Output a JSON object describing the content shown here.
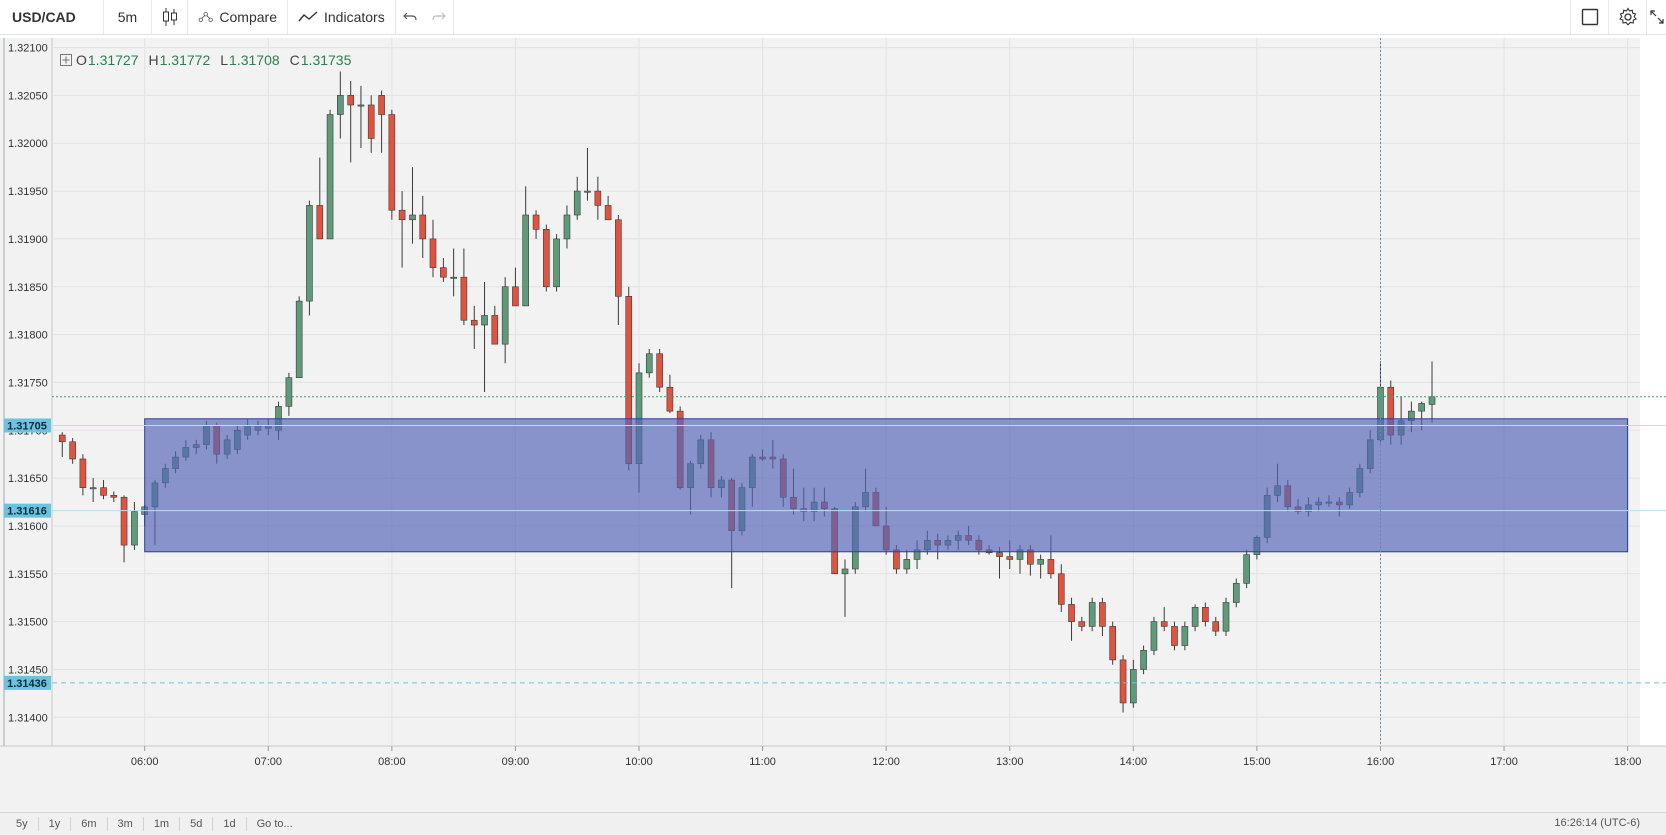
{
  "toolbar": {
    "symbol": "USD/CAD",
    "interval": "5m",
    "compare_label": "Compare",
    "indicators_label": "Indicators"
  },
  "legend": {
    "o_label": "O",
    "o_value": "1.31727",
    "h_label": "H",
    "h_value": "1.31772",
    "l_label": "L",
    "l_value": "1.31708",
    "c_label": "C",
    "c_value": "1.31735"
  },
  "bottom_bar": {
    "ranges": [
      "5y",
      "1y",
      "6m",
      "3m",
      "1m",
      "5d",
      "1d"
    ],
    "goto_label": "Go to...",
    "clock": "16:26:14 (UTC-6)"
  },
  "colors": {
    "up": "#5f9b7b",
    "down": "#e0533f",
    "zone_up": "#3d6f8e",
    "zone_down": "#8a4f7a",
    "zone_fill": "#5566b8",
    "price_tag": "#6cc3e0"
  },
  "chart_data": {
    "type": "candlestick",
    "symbol": "USD/CAD",
    "interval": "5m",
    "y_ticks": [
      "1.32100",
      "1.32050",
      "1.32000",
      "1.31950",
      "1.31900",
      "1.31850",
      "1.31800",
      "1.31750",
      "1.31700",
      "1.31650",
      "1.31600",
      "1.31550",
      "1.31500",
      "1.31450",
      "1.31400"
    ],
    "ylim": [
      1.3137,
      1.3211
    ],
    "x_ticks": [
      "06:00",
      "07:00",
      "08:00",
      "09:00",
      "10:00",
      "11:00",
      "12:00",
      "13:00",
      "14:00",
      "15:00",
      "16:00",
      "17:00",
      "18:00"
    ],
    "x_start_hour": 5.25,
    "x_end_hour": 18.1,
    "price_tags": [
      {
        "label": "1.31705",
        "value": 1.31705
      },
      {
        "label": "1.31616",
        "value": 1.31616
      },
      {
        "label": "1.31436",
        "value": 1.31436
      }
    ],
    "current_price_line": 1.31735,
    "crosshair_time": "16:00",
    "zone": {
      "start": "06:00",
      "end": "18:00",
      "top": 1.31712,
      "bottom": 1.31573
    },
    "candles": [
      [
        5.333,
        1.31695,
        1.31698,
        1.31672,
        1.31688
      ],
      [
        5.417,
        1.31688,
        1.31692,
        1.31665,
        1.3167
      ],
      [
        5.5,
        1.3167,
        1.31675,
        1.31632,
        1.3164
      ],
      [
        5.583,
        1.3164,
        1.3165,
        1.31625,
        1.3164
      ],
      [
        5.667,
        1.3164,
        1.31648,
        1.31628,
        1.31632
      ],
      [
        5.75,
        1.31632,
        1.31636,
        1.31625,
        1.3163
      ],
      [
        5.833,
        1.3163,
        1.31632,
        1.31562,
        1.3158
      ],
      [
        5.917,
        1.3158,
        1.31625,
        1.31575,
        1.31615
      ],
      [
        6.0,
        1.31612,
        1.31622,
        1.316,
        1.3162
      ],
      [
        6.083,
        1.3162,
        1.31648,
        1.3158,
        1.31645
      ],
      [
        6.167,
        1.31645,
        1.31665,
        1.3164,
        1.3166
      ],
      [
        6.25,
        1.3166,
        1.31678,
        1.31655,
        1.31672
      ],
      [
        6.333,
        1.31672,
        1.3169,
        1.31668,
        1.31682
      ],
      [
        6.417,
        1.31682,
        1.3169,
        1.31675,
        1.31685
      ],
      [
        6.5,
        1.31685,
        1.3171,
        1.3168,
        1.31705
      ],
      [
        6.583,
        1.31705,
        1.31708,
        1.31665,
        1.31675
      ],
      [
        6.667,
        1.31675,
        1.31695,
        1.3167,
        1.3169
      ],
      [
        6.75,
        1.3168,
        1.31705,
        1.31675,
        1.317
      ],
      [
        6.833,
        1.31695,
        1.31712,
        1.3169,
        1.31705
      ],
      [
        6.917,
        1.317,
        1.3171,
        1.31695,
        1.31705
      ],
      [
        7.0,
        1.31702,
        1.31712,
        1.31695,
        1.31705
      ],
      [
        7.083,
        1.317,
        1.3173,
        1.3169,
        1.31725
      ],
      [
        7.167,
        1.31725,
        1.3176,
        1.31715,
        1.31755
      ],
      [
        7.25,
        1.31755,
        1.3184,
        1.31755,
        1.31835
      ],
      [
        7.333,
        1.31835,
        1.3194,
        1.3182,
        1.31935
      ],
      [
        7.417,
        1.31935,
        1.31985,
        1.319,
        1.319
      ],
      [
        7.5,
        1.319,
        1.32035,
        1.319,
        1.3203
      ],
      [
        7.583,
        1.3203,
        1.32075,
        1.32005,
        1.3205
      ],
      [
        7.667,
        1.3205,
        1.32065,
        1.3198,
        1.3204
      ],
      [
        7.75,
        1.3204,
        1.3206,
        1.31995,
        1.3204
      ],
      [
        7.833,
        1.3204,
        1.3205,
        1.3199,
        1.32005
      ],
      [
        7.917,
        1.3205,
        1.32055,
        1.3199,
        1.3203
      ],
      [
        8.0,
        1.3203,
        1.32035,
        1.3192,
        1.3193
      ],
      [
        8.083,
        1.3193,
        1.3195,
        1.3187,
        1.3192
      ],
      [
        8.167,
        1.3192,
        1.31975,
        1.31895,
        1.31925
      ],
      [
        8.25,
        1.31925,
        1.31945,
        1.3188,
        1.319
      ],
      [
        8.333,
        1.319,
        1.3192,
        1.3186,
        1.3187
      ],
      [
        8.417,
        1.3187,
        1.3188,
        1.31855,
        1.3186
      ],
      [
        8.5,
        1.3186,
        1.3189,
        1.3184,
        1.3186
      ],
      [
        8.583,
        1.3186,
        1.3189,
        1.3181,
        1.31815
      ],
      [
        8.667,
        1.31815,
        1.3183,
        1.31785,
        1.3181
      ],
      [
        8.75,
        1.3181,
        1.31855,
        1.3174,
        1.3182
      ],
      [
        8.833,
        1.3182,
        1.3183,
        1.3179,
        1.3179
      ],
      [
        8.917,
        1.3179,
        1.3186,
        1.3177,
        1.3185
      ],
      [
        9.0,
        1.3185,
        1.3187,
        1.3183,
        1.3183
      ],
      [
        9.083,
        1.3183,
        1.31955,
        1.3183,
        1.31925
      ],
      [
        9.167,
        1.31925,
        1.3193,
        1.319,
        1.3191
      ],
      [
        9.25,
        1.3191,
        1.31915,
        1.31845,
        1.3185
      ],
      [
        9.333,
        1.3185,
        1.31905,
        1.31845,
        1.319
      ],
      [
        9.417,
        1.319,
        1.31935,
        1.3189,
        1.31925
      ],
      [
        9.5,
        1.31925,
        1.31965,
        1.3192,
        1.3195
      ],
      [
        9.583,
        1.3195,
        1.31995,
        1.3194,
        1.3195
      ],
      [
        9.667,
        1.3195,
        1.31965,
        1.3192,
        1.31935
      ],
      [
        9.75,
        1.31935,
        1.31945,
        1.3192,
        1.3192
      ],
      [
        9.833,
        1.3192,
        1.31925,
        1.3181,
        1.3184
      ],
      [
        9.917,
        1.3184,
        1.3185,
        1.31658,
        1.31665
      ],
      [
        10.0,
        1.31665,
        1.3177,
        1.31635,
        1.3176
      ],
      [
        10.083,
        1.3176,
        1.31785,
        1.31755,
        1.3178
      ],
      [
        10.167,
        1.3178,
        1.31785,
        1.3174,
        1.31745
      ],
      [
        10.25,
        1.31745,
        1.31758,
        1.31718,
        1.3172
      ],
      [
        10.333,
        1.3172,
        1.31725,
        1.31638,
        1.3164
      ],
      [
        10.417,
        1.3164,
        1.31668,
        1.31612,
        1.31665
      ],
      [
        10.5,
        1.31665,
        1.31695,
        1.3166,
        1.3169
      ],
      [
        10.583,
        1.3169,
        1.31698,
        1.3163,
        1.3164
      ],
      [
        10.667,
        1.3164,
        1.31652,
        1.3163,
        1.31648
      ],
      [
        10.75,
        1.31648,
        1.3165,
        1.31535,
        1.31595
      ],
      [
        10.833,
        1.31595,
        1.31645,
        1.3159,
        1.3164
      ],
      [
        10.917,
        1.3164,
        1.31675,
        1.3162,
        1.31672
      ],
      [
        11.0,
        1.31672,
        1.3168,
        1.31668,
        1.3167
      ],
      [
        11.083,
        1.31672,
        1.3169,
        1.3166,
        1.3167
      ],
      [
        11.167,
        1.3167,
        1.31675,
        1.3162,
        1.3163
      ],
      [
        11.25,
        1.3163,
        1.3166,
        1.31612,
        1.31618
      ],
      [
        11.333,
        1.31618,
        1.3164,
        1.31605,
        1.31615
      ],
      [
        11.417,
        1.31615,
        1.3164,
        1.31605,
        1.31625
      ],
      [
        11.5,
        1.31625,
        1.3164,
        1.3161,
        1.31618
      ],
      [
        11.583,
        1.31618,
        1.3162,
        1.3155,
        1.3155
      ],
      [
        11.667,
        1.3155,
        1.31565,
        1.31505,
        1.31555
      ],
      [
        11.75,
        1.31555,
        1.31625,
        1.3155,
        1.3162
      ],
      [
        11.833,
        1.3162,
        1.3166,
        1.31615,
        1.31635
      ],
      [
        11.917,
        1.31635,
        1.3164,
        1.316,
        1.316
      ],
      [
        12.0,
        1.316,
        1.3162,
        1.3157,
        1.31575
      ],
      [
        12.083,
        1.31575,
        1.3158,
        1.3155,
        1.31555
      ],
      [
        12.167,
        1.31555,
        1.31575,
        1.3155,
        1.31565
      ],
      [
        12.25,
        1.31565,
        1.31585,
        1.31555,
        1.31575
      ],
      [
        12.333,
        1.31575,
        1.31595,
        1.3157,
        1.31585
      ],
      [
        12.417,
        1.31585,
        1.31592,
        1.31565,
        1.3158
      ],
      [
        12.5,
        1.3158,
        1.3159,
        1.31575,
        1.31585
      ],
      [
        12.583,
        1.31585,
        1.31595,
        1.31575,
        1.3159
      ],
      [
        12.667,
        1.3159,
        1.316,
        1.3158,
        1.31585
      ],
      [
        12.75,
        1.31585,
        1.3159,
        1.3157,
        1.31575
      ],
      [
        12.833,
        1.31575,
        1.3158,
        1.3157,
        1.31572
      ],
      [
        12.917,
        1.31572,
        1.31578,
        1.31545,
        1.31568
      ],
      [
        13.0,
        1.31568,
        1.31585,
        1.31555,
        1.31565
      ],
      [
        13.083,
        1.31565,
        1.3158,
        1.3155,
        1.31575
      ],
      [
        13.167,
        1.31575,
        1.3158,
        1.31548,
        1.3156
      ],
      [
        13.25,
        1.3156,
        1.3157,
        1.31545,
        1.31565
      ],
      [
        13.333,
        1.31565,
        1.3159,
        1.31545,
        1.3155
      ],
      [
        13.417,
        1.3155,
        1.3156,
        1.3151,
        1.31518
      ],
      [
        13.5,
        1.31518,
        1.31525,
        1.3148,
        1.315
      ],
      [
        13.583,
        1.315,
        1.31505,
        1.3149,
        1.31495
      ],
      [
        13.667,
        1.31495,
        1.31525,
        1.3149,
        1.3152
      ],
      [
        13.75,
        1.3152,
        1.31525,
        1.31485,
        1.31495
      ],
      [
        13.833,
        1.31495,
        1.315,
        1.31455,
        1.3146
      ],
      [
        13.917,
        1.3146,
        1.31465,
        1.31405,
        1.31415
      ],
      [
        14.0,
        1.31415,
        1.3146,
        1.3141,
        1.3145
      ],
      [
        14.083,
        1.3145,
        1.31475,
        1.31445,
        1.3147
      ],
      [
        14.167,
        1.3147,
        1.31505,
        1.31465,
        1.315
      ],
      [
        14.25,
        1.315,
        1.31515,
        1.3149,
        1.31495
      ],
      [
        14.333,
        1.31495,
        1.315,
        1.3147,
        1.31475
      ],
      [
        14.417,
        1.31475,
        1.315,
        1.3147,
        1.31495
      ],
      [
        14.5,
        1.31495,
        1.31518,
        1.3149,
        1.31515
      ],
      [
        14.583,
        1.31515,
        1.3152,
        1.31495,
        1.315
      ],
      [
        14.667,
        1.315,
        1.31505,
        1.31485,
        1.3149
      ],
      [
        14.75,
        1.3149,
        1.31525,
        1.31485,
        1.3152
      ],
      [
        14.833,
        1.3152,
        1.31545,
        1.31515,
        1.3154
      ],
      [
        14.917,
        1.3154,
        1.31575,
        1.31535,
        1.3157
      ],
      [
        15.0,
        1.3157,
        1.3159,
        1.31565,
        1.31588
      ],
      [
        15.083,
        1.31588,
        1.3164,
        1.31582,
        1.31632
      ],
      [
        15.167,
        1.31632,
        1.31665,
        1.31625,
        1.31642
      ],
      [
        15.25,
        1.31642,
        1.31648,
        1.31615,
        1.3162
      ],
      [
        15.333,
        1.3162,
        1.31628,
        1.31612,
        1.31615
      ],
      [
        15.417,
        1.31615,
        1.3163,
        1.3161,
        1.31622
      ],
      [
        15.5,
        1.31622,
        1.3163,
        1.31615,
        1.31625
      ],
      [
        15.583,
        1.31625,
        1.31632,
        1.3162,
        1.31625
      ],
      [
        15.667,
        1.31625,
        1.3163,
        1.3161,
        1.31622
      ],
      [
        15.75,
        1.31622,
        1.3164,
        1.31618,
        1.31635
      ],
      [
        15.833,
        1.31635,
        1.31665,
        1.3163,
        1.3166
      ],
      [
        15.917,
        1.3166,
        1.317,
        1.31655,
        1.3169
      ],
      [
        16.0,
        1.3169,
        1.31772,
        1.31685,
        1.31745
      ],
      [
        16.083,
        1.31745,
        1.31752,
        1.31685,
        1.31695
      ],
      [
        16.167,
        1.31695,
        1.31735,
        1.31685,
        1.3171
      ],
      [
        16.25,
        1.3171,
        1.3173,
        1.31698,
        1.3172
      ],
      [
        16.333,
        1.3172,
        1.3173,
        1.317,
        1.31728
      ],
      [
        16.417,
        1.31727,
        1.31772,
        1.31708,
        1.31735
      ]
    ]
  }
}
